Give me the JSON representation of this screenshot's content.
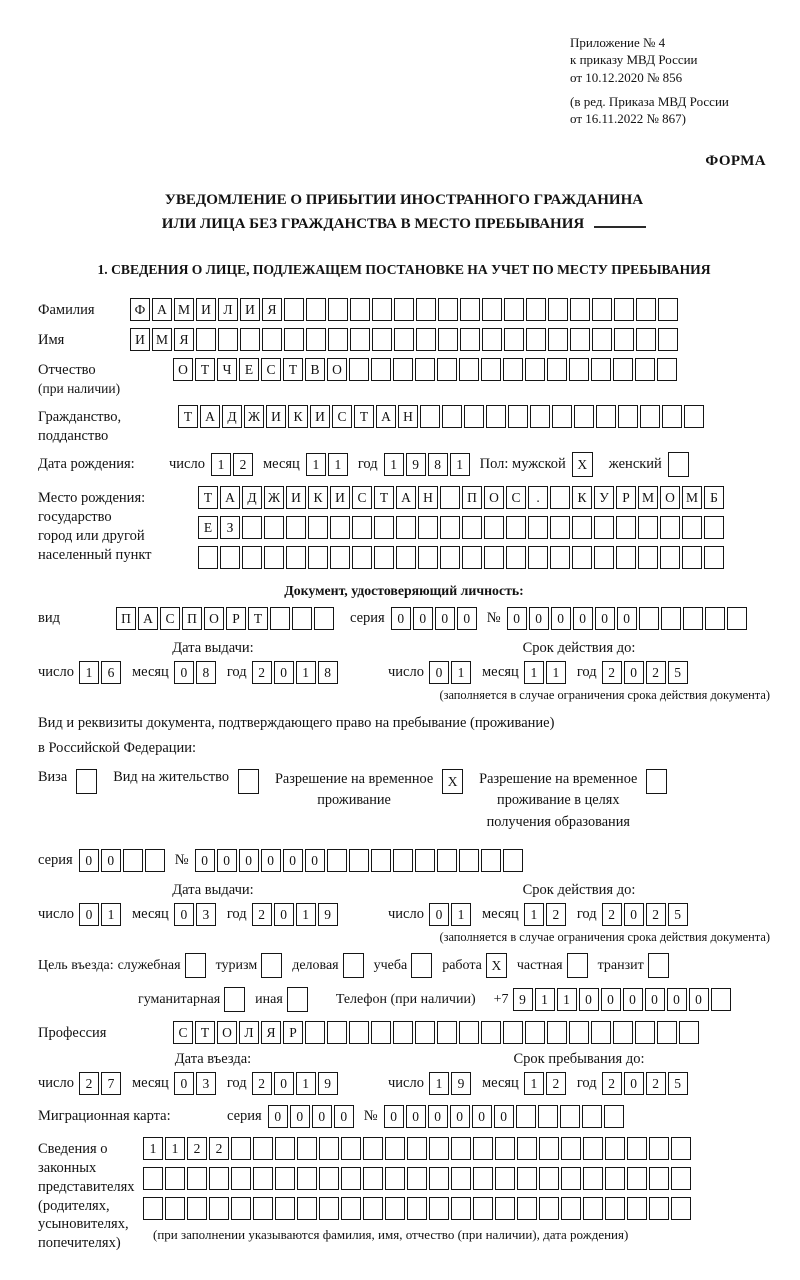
{
  "colors": {
    "ink": "#161616",
    "paper": "#ffffff"
  },
  "header": {
    "lines": [
      "Приложение № 4",
      "к приказу МВД России",
      "от 10.12.2020 № 856",
      "(в ред. Приказа МВД России",
      "от 16.11.2022 № 867)"
    ],
    "form": "ФОРМА"
  },
  "title": {
    "line1": "УВЕДОМЛЕНИЕ О ПРИБЫТИИ ИНОСТРАННОГО ГРАЖДАНИНА",
    "line2": "ИЛИ ЛИЦА БЕЗ ГРАЖДАНСТВА В МЕСТО ПРЕБЫВАНИЯ"
  },
  "section1": "1. СВЕДЕНИЯ О ЛИЦЕ, ПОДЛЕЖАЩЕМ ПОСТАНОВКЕ НА УЧЕТ ПО МЕСТУ ПРЕБЫВАНИЯ",
  "labels": {
    "surname": "Фамилия",
    "given_name": "Имя",
    "patronymic": "Отчество",
    "patronymic_note": "(при наличии)",
    "citizenship_l1": "Гражданство,",
    "citizenship_l2": "подданство",
    "birth_date": "Дата рождения:",
    "day": "число",
    "month": "месяц",
    "year": "год",
    "sex_male": "Пол: мужской",
    "sex_female": "женский",
    "birth_place": "Место рождения:",
    "birth_place_l2": "государство",
    "birth_place_l3": "город или другой",
    "birth_place_l4": "населенный пункт",
    "identity_doc_heading": "Документ, удостоверяющий личность:",
    "doc_kind": "вид",
    "series": "серия",
    "number": "№",
    "issue_date": "Дата выдачи:",
    "valid_until": "Срок действия до:",
    "valid_note": "(заполняется в случае ограничения срока действия документа)",
    "residence_doc_l1": "Вид и реквизиты документа, подтверждающего право на пребывание (проживание)",
    "residence_doc_l2": "в Российской Федерации:",
    "visa": "Виза",
    "residence_permit": "Вид на жительство",
    "temp_residence_l1": "Разрешение на временное",
    "temp_residence_l2": "проживание",
    "temp_edu_l1": "Разрешение на временное",
    "temp_edu_l2": "проживание в целях",
    "temp_edu_l3": "получения образования",
    "entry_purpose": "Цель въезда:",
    "purpose_official": "служебная",
    "purpose_tourism": "туризм",
    "purpose_business": "деловая",
    "purpose_study": "учеба",
    "purpose_work": "работа",
    "purpose_private": "частная",
    "purpose_transit": "транзит",
    "purpose_humanitarian": "гуманитарная",
    "purpose_other": "иная",
    "phone": "Телефон (при наличии)",
    "phone_prefix": "+7",
    "profession": "Профессия",
    "entry_date": "Дата въезда:",
    "stay_until": "Срок пребывания до:",
    "migration_card": "Миграционная карта:",
    "rep_l1": "Сведения о",
    "rep_l2": "законных",
    "rep_l3": "представителях",
    "rep_l4": "(родителях,",
    "rep_l5": "усыновителях,",
    "rep_l6": "попечителях)",
    "rep_note": "(при заполнении указываются фамилия, имя, отчество (при наличии), дата рождения)"
  },
  "fields": {
    "surname": {
      "value": "ФАМИЛИЯ",
      "len": 25
    },
    "given_name": {
      "value": "ИМЯ",
      "len": 25
    },
    "patronymic": {
      "value": "ОТЧЕСТВО",
      "len": 23
    },
    "citizenship": {
      "value": "ТАДЖИКИСТАН",
      "len": 24
    },
    "birth_day": {
      "value": "12",
      "len": 2
    },
    "birth_month": {
      "value": "11",
      "len": 2
    },
    "birth_year": {
      "value": "1981",
      "len": 4
    },
    "sex_male_cb": {
      "value": "X",
      "len": 1
    },
    "sex_female_cb": {
      "value": "",
      "len": 1
    },
    "birth_place_row1": {
      "value": "ТАДЖИКИСТАН ПОС. КУРМОМБ",
      "len": 24
    },
    "birth_place_row2": {
      "value": "ЕЗ",
      "len": 24
    },
    "birth_place_row3": {
      "value": "",
      "len": 24
    },
    "id_doc_kind": {
      "value": "ПАСПОРТ",
      "len": 10
    },
    "id_doc_series": {
      "value": "0000",
      "len": 4
    },
    "id_doc_number": {
      "value": "000000",
      "len": 11
    },
    "id_issue_day": {
      "value": "16",
      "len": 2
    },
    "id_issue_month": {
      "value": "08",
      "len": 2
    },
    "id_issue_year": {
      "value": "2018",
      "len": 4
    },
    "id_valid_day": {
      "value": "01",
      "len": 2
    },
    "id_valid_month": {
      "value": "11",
      "len": 2
    },
    "id_valid_year": {
      "value": "2025",
      "len": 4
    },
    "visa_cb": {
      "value": "",
      "len": 1
    },
    "residence_permit_cb": {
      "value": "",
      "len": 1
    },
    "temp_residence_cb": {
      "value": "X",
      "len": 1
    },
    "temp_residence_edu_cb": {
      "value": "",
      "len": 1
    },
    "permit_series": {
      "value": "00",
      "len": 4
    },
    "permit_number": {
      "value": "000000",
      "len": 15
    },
    "permit_issue_day": {
      "value": "01",
      "len": 2
    },
    "permit_issue_month": {
      "value": "03",
      "len": 2
    },
    "permit_issue_year": {
      "value": "2019",
      "len": 4
    },
    "permit_valid_day": {
      "value": "01",
      "len": 2
    },
    "permit_valid_month": {
      "value": "12",
      "len": 2
    },
    "permit_valid_year": {
      "value": "2025",
      "len": 4
    },
    "purpose_official_cb": {
      "value": "",
      "len": 1
    },
    "purpose_tourism_cb": {
      "value": "",
      "len": 1
    },
    "purpose_business_cb": {
      "value": "",
      "len": 1
    },
    "purpose_study_cb": {
      "value": "",
      "len": 1
    },
    "purpose_work_cb": {
      "value": "X",
      "len": 1
    },
    "purpose_private_cb": {
      "value": "",
      "len": 1
    },
    "purpose_transit_cb": {
      "value": "",
      "len": 1
    },
    "purpose_humanitarian_cb": {
      "value": "",
      "len": 1
    },
    "purpose_other_cb": {
      "value": "",
      "len": 1
    },
    "phone_digits": {
      "value": "911000000",
      "len": 10
    },
    "profession": {
      "value": "СТОЛЯР",
      "len": 24
    },
    "entry_day": {
      "value": "27",
      "len": 2
    },
    "entry_month": {
      "value": "03",
      "len": 2
    },
    "entry_year": {
      "value": "2019",
      "len": 4
    },
    "stay_day": {
      "value": "19",
      "len": 2
    },
    "stay_month": {
      "value": "12",
      "len": 2
    },
    "stay_year": {
      "value": "2025",
      "len": 4
    },
    "mig_series": {
      "value": "0000",
      "len": 4
    },
    "mig_number": {
      "value": "000000",
      "len": 11
    },
    "rep_row1": {
      "value": "1122",
      "len": 25
    },
    "rep_row2": {
      "value": "",
      "len": 25
    },
    "rep_row3": {
      "value": "",
      "len": 25
    }
  }
}
